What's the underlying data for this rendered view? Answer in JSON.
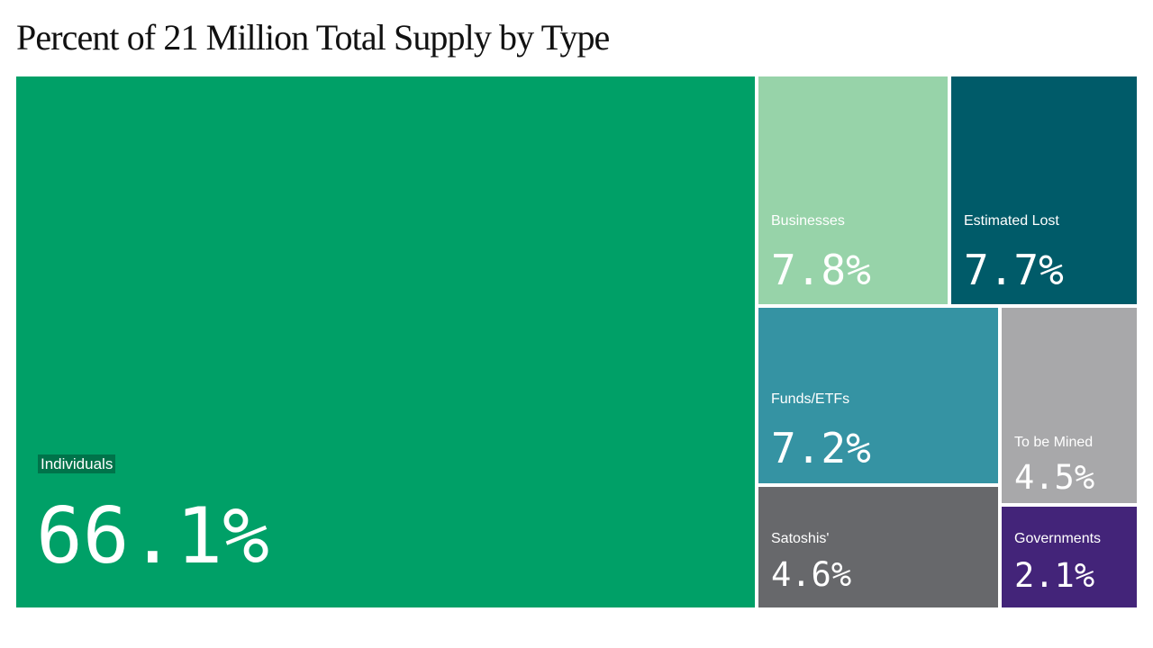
{
  "chart_data": {
    "type": "treemap",
    "title": "Percent of 21 Million Total Supply by Type",
    "unit": "%",
    "items": [
      {
        "label": "Individuals",
        "value": 66.1,
        "display": "66.1%",
        "color": "#00a067"
      },
      {
        "label": "Businesses",
        "value": 7.8,
        "display": "7.8%",
        "color": "#97d3a9"
      },
      {
        "label": "Estimated Lost",
        "value": 7.7,
        "display": "7.7%",
        "color": "#005b69"
      },
      {
        "label": "Funds/ETFs",
        "value": 7.2,
        "display": "7.2%",
        "color": "#3593a3"
      },
      {
        "label": "Satoshis'",
        "value": 4.6,
        "display": "4.6%",
        "color": "#67686b"
      },
      {
        "label": "To be Mined",
        "value": 4.5,
        "display": "4.5%",
        "color": "#a8a8aa"
      },
      {
        "label": "Governments",
        "value": 2.1,
        "display": "2.1%",
        "color": "#432479"
      }
    ]
  }
}
